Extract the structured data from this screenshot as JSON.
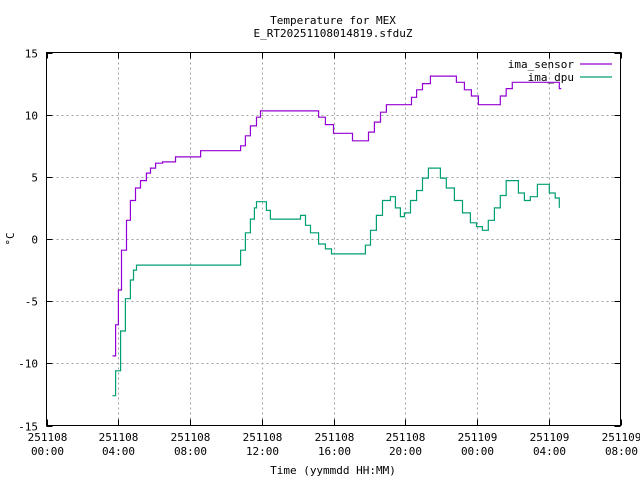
{
  "chart_data": {
    "type": "line",
    "title": "Temperature for MEX",
    "subtitle": "E_RT20251108014819.sfduZ",
    "xlabel": "Time (yymmdd HH:MM)",
    "ylabel": "°C",
    "x_units": "hours since 251108 00:00",
    "xlim": [
      0,
      32
    ],
    "ylim": [
      -15,
      15
    ],
    "grid": true,
    "legend_position": "top-right",
    "yticks": [
      -15,
      -10,
      -5,
      0,
      5,
      10,
      15
    ],
    "xticks": [
      {
        "value": 0,
        "date": "251108",
        "time": "00:00"
      },
      {
        "value": 4,
        "date": "251108",
        "time": "04:00"
      },
      {
        "value": 8,
        "date": "251108",
        "time": "08:00"
      },
      {
        "value": 12,
        "date": "251108",
        "time": "12:00"
      },
      {
        "value": 16,
        "date": "251108",
        "time": "16:00"
      },
      {
        "value": 20,
        "date": "251108",
        "time": "20:00"
      },
      {
        "value": 24,
        "date": "251109",
        "time": "00:00"
      },
      {
        "value": 28,
        "date": "251109",
        "time": "04:00"
      },
      {
        "value": 32,
        "date": "251109",
        "time": "08:00"
      }
    ],
    "series": [
      {
        "name": "ima_sensor",
        "color": "#9400d3",
        "x": [
          3.68,
          3.85,
          4.01,
          4.18,
          4.46,
          4.68,
          4.96,
          5.24,
          5.57,
          5.8,
          6.08,
          6.47,
          7.19,
          8.03,
          8.59,
          10.71,
          10.82,
          11.09,
          11.37,
          11.71,
          11.93,
          13.6,
          14.83,
          15.17,
          15.55,
          16.0,
          16.83,
          17.06,
          17.73,
          17.95,
          18.28,
          18.62,
          18.95,
          19.3,
          20.35,
          20.63,
          20.96,
          21.4,
          21.63,
          22.85,
          23.3,
          23.69,
          24.08,
          24.52,
          25.3,
          25.63,
          25.97,
          26.2,
          26.75,
          27.7,
          28.36,
          28.59,
          28.7
        ],
        "y": [
          -9.4,
          -6.9,
          -4.1,
          -0.9,
          1.5,
          3.1,
          4.1,
          4.7,
          5.3,
          5.7,
          6.1,
          6.2,
          6.6,
          6.6,
          7.1,
          7.1,
          7.5,
          8.3,
          9.1,
          9.8,
          10.3,
          10.3,
          10.3,
          9.8,
          9.2,
          8.5,
          8.5,
          7.9,
          7.9,
          8.6,
          9.4,
          10.2,
          10.8,
          10.8,
          11.4,
          12.0,
          12.5,
          13.1,
          13.1,
          12.6,
          12.0,
          11.5,
          10.8,
          10.8,
          11.5,
          12.1,
          12.6,
          12.6,
          12.6,
          12.6,
          12.6,
          12.1,
          12.1
        ]
      },
      {
        "name": "ima_dpu",
        "color": "#009e73",
        "x": [
          3.68,
          3.85,
          4.13,
          4.4,
          4.68,
          4.85,
          5.02,
          6.35,
          10.54,
          10.82,
          11.09,
          11.37,
          11.59,
          11.71,
          12.04,
          12.26,
          12.48,
          14.16,
          14.44,
          14.72,
          15.17,
          15.55,
          15.89,
          17.62,
          17.78,
          18.06,
          18.39,
          18.73,
          19.17,
          19.45,
          19.73,
          19.95,
          20.29,
          20.63,
          20.96,
          21.29,
          21.63,
          21.96,
          22.29,
          22.74,
          23.19,
          23.63,
          23.97,
          24.3,
          24.63,
          24.97,
          25.3,
          25.63,
          25.97,
          26.31,
          26.64,
          26.97,
          27.37,
          27.76,
          28.03,
          28.36,
          28.59
        ],
        "y": [
          -12.6,
          -10.6,
          -7.4,
          -4.8,
          -3.3,
          -2.5,
          -2.1,
          -2.1,
          -2.1,
          -0.9,
          0.5,
          1.6,
          2.5,
          3.0,
          3.0,
          2.3,
          1.6,
          1.9,
          1.1,
          0.5,
          -0.4,
          -0.8,
          -1.2,
          -1.2,
          -0.5,
          0.7,
          1.9,
          3.1,
          3.4,
          2.5,
          1.8,
          2.1,
          3.1,
          3.9,
          4.9,
          5.7,
          5.7,
          4.9,
          4.1,
          3.1,
          2.1,
          1.3,
          1.0,
          0.7,
          1.5,
          2.5,
          3.5,
          4.7,
          4.7,
          3.7,
          3.1,
          3.4,
          4.4,
          4.4,
          3.7,
          3.3,
          2.5
        ]
      }
    ]
  }
}
